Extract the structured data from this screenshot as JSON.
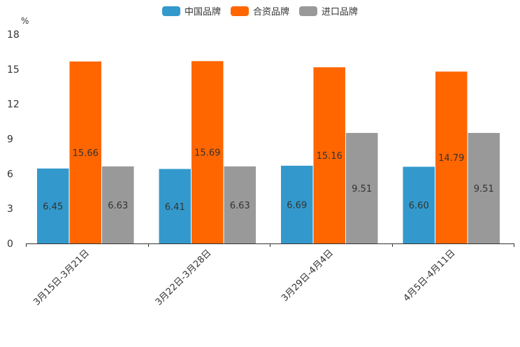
{
  "chart_data": {
    "type": "bar",
    "title": "",
    "xlabel": "",
    "ylabel": "%",
    "ylim": [
      0,
      18
    ],
    "yticks": [
      0,
      3,
      6,
      9,
      12,
      15,
      18
    ],
    "categories": [
      "3月15日-3月21日",
      "3月22日-3月28日",
      "3月29日-4月4日",
      "4月5日-4月11日"
    ],
    "series": [
      {
        "name": "中国品牌",
        "color": "#3399cc",
        "values": [
          6.45,
          6.41,
          6.69,
          6.6
        ],
        "labels": [
          "6.45",
          "6.41",
          "6.69",
          "6.60"
        ]
      },
      {
        "name": "合资品牌",
        "color": "#ff6600",
        "values": [
          15.66,
          15.69,
          15.16,
          14.79
        ],
        "labels": [
          "15.66",
          "15.69",
          "15.16",
          "14.79"
        ]
      },
      {
        "name": "进口品牌",
        "color": "#999999",
        "values": [
          6.63,
          6.63,
          9.51,
          9.51
        ],
        "labels": [
          "6.63",
          "6.63",
          "9.51",
          "9.51"
        ]
      }
    ],
    "legend_position": "top-center",
    "grid": false
  }
}
